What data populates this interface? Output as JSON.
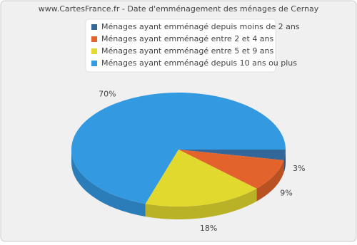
{
  "chart_data": {
    "type": "pie",
    "title": "www.CartesFrance.fr - Date d'emménagement des ménages de Cernay",
    "categories": [
      "Ménages ayant emménagé depuis moins de 2 ans",
      "Ménages ayant emménagé entre 2 et 4 ans",
      "Ménages ayant emménagé entre 5 et 9 ans",
      "Ménages ayant emménagé depuis 10 ans ou plus"
    ],
    "values": [
      3,
      9,
      18,
      70
    ],
    "value_labels": [
      "3%",
      "9%",
      "18%",
      "70%"
    ],
    "colors": [
      "#336699",
      "#e2632b",
      "#e2d92f",
      "#3399e0"
    ],
    "legend": "top"
  }
}
